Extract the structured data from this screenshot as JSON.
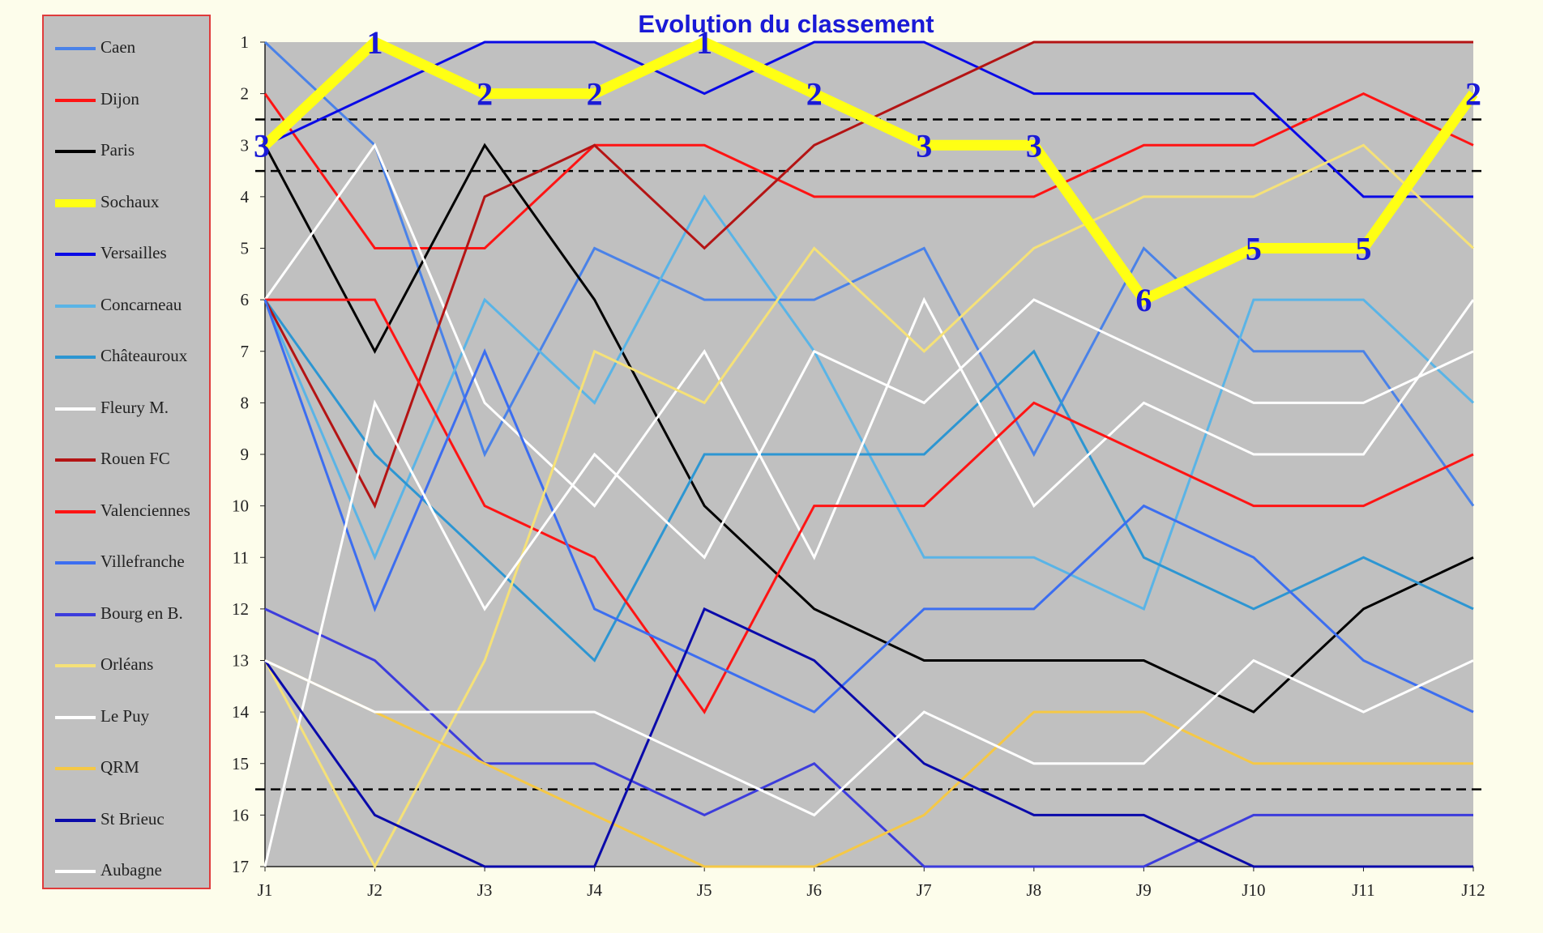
{
  "chart_data": {
    "type": "line",
    "title": "Evolution du classement",
    "x": [
      "J1",
      "J2",
      "J3",
      "J4",
      "J5",
      "J6",
      "J7",
      "J8",
      "J9",
      "J10",
      "J11",
      "J12"
    ],
    "y_ticks": [
      "1",
      "2",
      "3",
      "4",
      "5",
      "6",
      "7",
      "8",
      "9",
      "10",
      "11",
      "12",
      "13",
      "14",
      "15",
      "16",
      "17"
    ],
    "ylim": [
      1,
      17
    ],
    "y_inverted": true,
    "background": "#c0c0c0",
    "reference_lines": [
      2.5,
      3.5,
      15.5
    ],
    "series": [
      {
        "name": "Caen",
        "color": "#4a82e8",
        "width": 3,
        "values": [
          1,
          3,
          9,
          5,
          6,
          6,
          5,
          9,
          5,
          7,
          7,
          10
        ]
      },
      {
        "name": "Dijon",
        "color": "#ff1414",
        "width": 3,
        "values": [
          2,
          5,
          5,
          3,
          3,
          4,
          4,
          4,
          3,
          3,
          2,
          3
        ]
      },
      {
        "name": "Paris",
        "color": "#000000",
        "width": 3,
        "values": [
          3,
          7,
          3,
          6,
          10,
          12,
          13,
          13,
          13,
          14,
          12,
          11
        ]
      },
      {
        "name": "Sochaux",
        "color": "#ffff14",
        "width": 13,
        "values": [
          3,
          1,
          2,
          2,
          1,
          2,
          3,
          3,
          6,
          5,
          5,
          2
        ]
      },
      {
        "name": "Versailles",
        "color": "#0a0ae6",
        "width": 3,
        "values": [
          3,
          2,
          1,
          1,
          2,
          1,
          1,
          2,
          2,
          2,
          4,
          4
        ]
      },
      {
        "name": "Concarneau",
        "color": "#5ab4e6",
        "width": 3,
        "values": [
          6,
          11,
          6,
          8,
          4,
          7,
          11,
          11,
          12,
          6,
          6,
          8
        ]
      },
      {
        "name": "Châteauroux",
        "color": "#2d96d2",
        "width": 3,
        "values": [
          6,
          9,
          11,
          13,
          9,
          9,
          9,
          7,
          11,
          12,
          11,
          12
        ]
      },
      {
        "name": "Fleury M.",
        "color": "#ffffff",
        "width": 3,
        "values": [
          6,
          3,
          8,
          10,
          7,
          11,
          6,
          10,
          8,
          9,
          9,
          6
        ]
      },
      {
        "name": "Rouen FC",
        "color": "#b41414",
        "width": 3,
        "values": [
          6,
          10,
          4,
          3,
          5,
          3,
          2,
          1,
          1,
          1,
          1,
          1
        ]
      },
      {
        "name": "Valenciennes",
        "color": "#ff1414",
        "width": 3,
        "values": [
          6,
          6,
          10,
          11,
          14,
          10,
          10,
          8,
          9,
          10,
          10,
          9
        ]
      },
      {
        "name": "Villefranche",
        "color": "#3c6ef0",
        "width": 3,
        "values": [
          6,
          12,
          7,
          12,
          13,
          14,
          12,
          12,
          10,
          11,
          13,
          14
        ]
      },
      {
        "name": "Bourg en B.",
        "color": "#3c3cdc",
        "width": 3,
        "values": [
          12,
          13,
          15,
          15,
          16,
          15,
          17,
          17,
          17,
          16,
          16,
          16
        ]
      },
      {
        "name": "Orléans",
        "color": "#f5e178",
        "width": 3,
        "values": [
          13,
          17,
          13,
          7,
          8,
          5,
          7,
          5,
          4,
          4,
          3,
          5
        ]
      },
      {
        "name": "Le Puy",
        "color": "#ffffff",
        "width": 3,
        "values": [
          17,
          8,
          12,
          9,
          11,
          7,
          8,
          6,
          7,
          8,
          8,
          7
        ]
      },
      {
        "name": "QRM",
        "color": "#f5c846",
        "width": 3,
        "values": [
          13,
          14,
          15,
          16,
          17,
          17,
          16,
          14,
          14,
          15,
          15,
          15
        ]
      },
      {
        "name": "St Brieuc",
        "color": "#0a0aaa",
        "width": 3,
        "values": [
          13,
          16,
          17,
          17,
          12,
          13,
          15,
          16,
          16,
          17,
          17,
          17
        ]
      },
      {
        "name": "Aubagne",
        "color": "#ffffff",
        "width": 3,
        "values": [
          13,
          14,
          14,
          14,
          15,
          16,
          14,
          15,
          15,
          13,
          14,
          13
        ]
      }
    ],
    "highlight": {
      "series": "Sochaux",
      "labels": [
        "3",
        "1",
        "2",
        "2",
        "1",
        "2",
        "3",
        "3",
        "6",
        "5",
        "5",
        "2"
      ]
    }
  }
}
